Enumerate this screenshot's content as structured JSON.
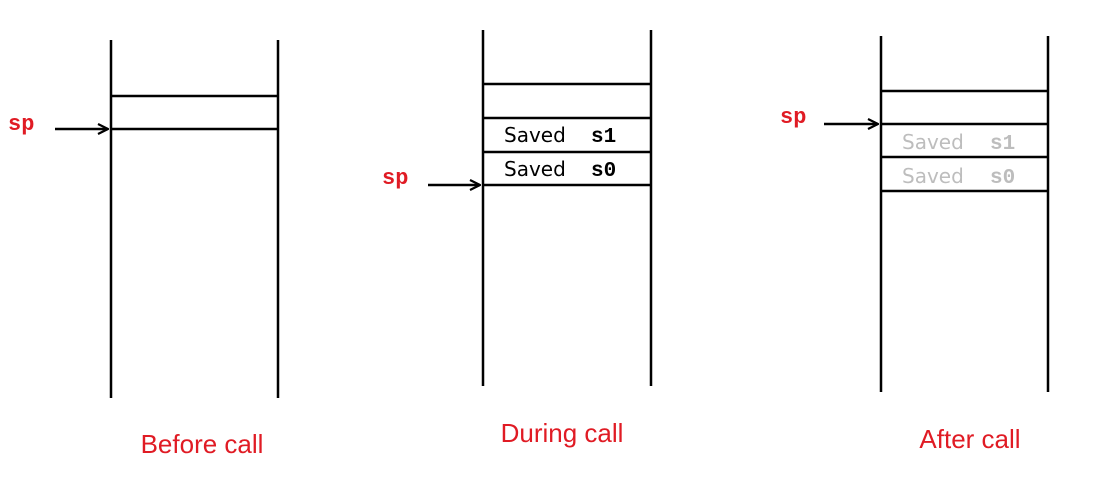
{
  "colors": {
    "label": "#e01b24",
    "line": "#000000",
    "active_text": "#000000",
    "faded_text": "#bdbdbd"
  },
  "diagrams": [
    {
      "caption": "Before call",
      "sp_label": "sp",
      "slots": []
    },
    {
      "caption": "During call",
      "sp_label": "sp",
      "slots": [
        {
          "word": "Saved",
          "reg": "s1",
          "faded": false
        },
        {
          "word": "Saved",
          "reg": "s0",
          "faded": false
        }
      ]
    },
    {
      "caption": "After call",
      "sp_label": "sp",
      "slots": [
        {
          "word": "Saved",
          "reg": "s1",
          "faded": true
        },
        {
          "word": "Saved",
          "reg": "s0",
          "faded": true
        }
      ]
    }
  ]
}
